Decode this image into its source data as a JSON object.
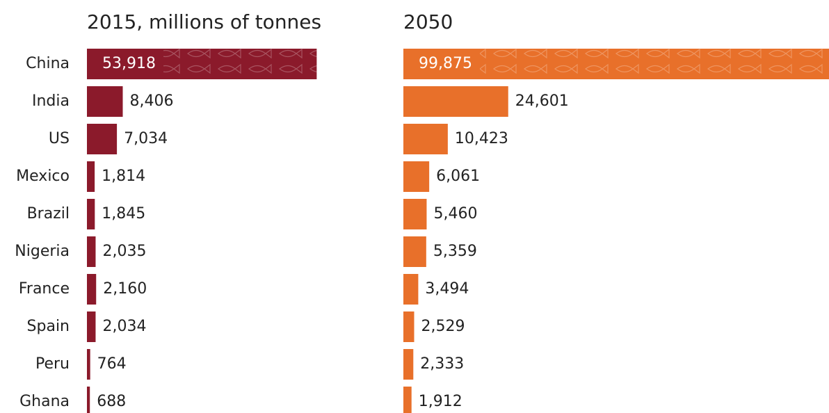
{
  "chart_data": {
    "type": "bar",
    "orientation": "horizontal",
    "categories": [
      "China",
      "India",
      "US",
      "Mexico",
      "Brazil",
      "Nigeria",
      "France",
      "Spain",
      "Peru",
      "Ghana"
    ],
    "series": [
      {
        "name": "2015, millions of tonnes",
        "color": "#8b1a2b",
        "values": [
          53918,
          8406,
          7034,
          1814,
          1845,
          2035,
          2160,
          2034,
          764,
          688
        ],
        "value_labels": [
          "53,918",
          "8,406",
          "7,034",
          "1,814",
          "1,845",
          "2,035",
          "2,160",
          "2,034",
          "764",
          "688"
        ]
      },
      {
        "name": "2050",
        "color": "#e8702a",
        "values": [
          99875,
          24601,
          10423,
          6061,
          5460,
          5359,
          3494,
          2529,
          2333,
          1912
        ],
        "value_labels": [
          "99,875",
          "24,601",
          "10,423",
          "6,061",
          "5,460",
          "5,359",
          "3,494",
          "2,529",
          "2,333",
          "1,912"
        ]
      }
    ]
  }
}
